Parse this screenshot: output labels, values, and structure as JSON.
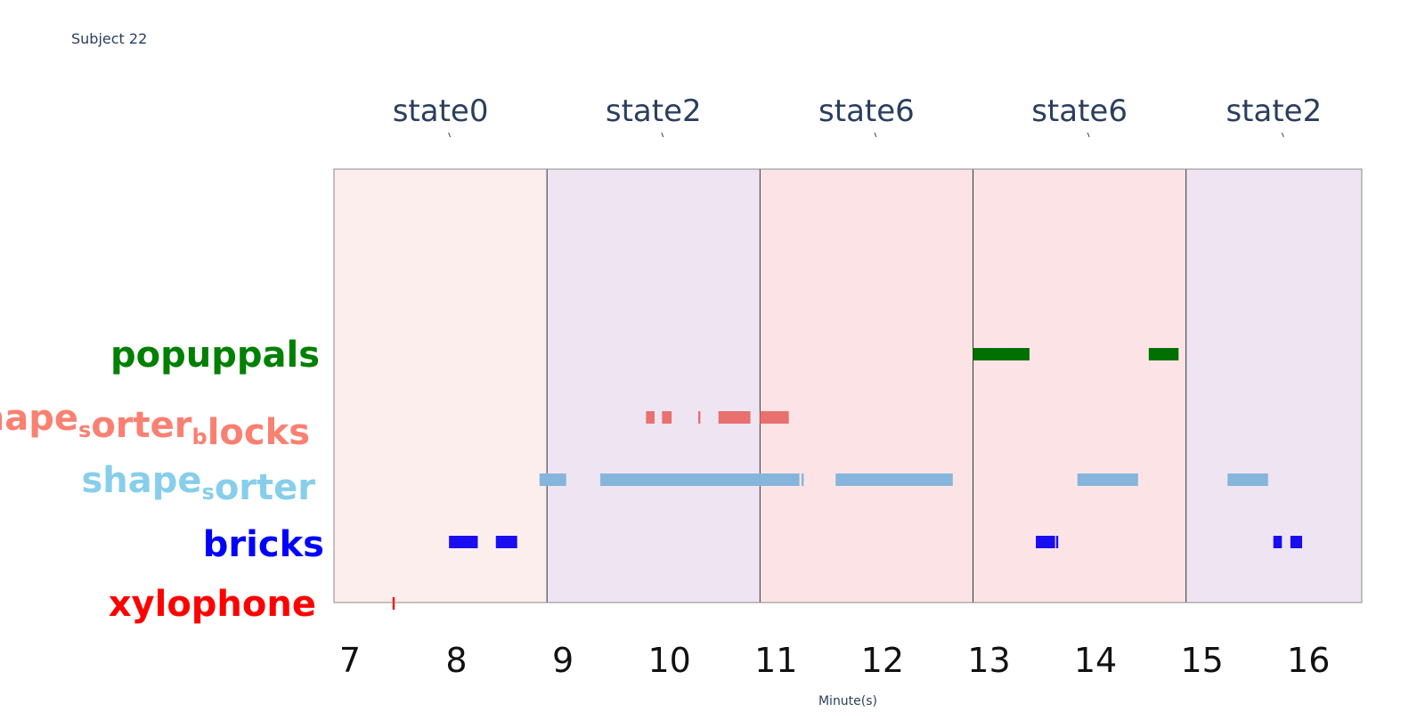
{
  "subtitle": "Subject 22",
  "chart_data": {
    "type": "timeline",
    "title": "",
    "xlabel": "Minute(s)",
    "ylabel": "",
    "xlim": [
      6.85,
      16.5
    ],
    "xticks": [
      7,
      8,
      9,
      10,
      11,
      12,
      13,
      14,
      15,
      16
    ],
    "categories": [
      "xylophone",
      "bricks",
      "shape_sorter",
      "shape_sorter_blocks",
      "popuppals"
    ],
    "category_labels": [
      {
        "key": "popuppals",
        "parts": [
          {
            "t": "popuppals"
          }
        ],
        "color": "#008000"
      },
      {
        "key": "shape_sorter_blocks",
        "parts": [
          {
            "t": "shape"
          },
          {
            "t": "s",
            "sub": true
          },
          {
            "t": "orter"
          },
          {
            "t": "b",
            "sub": true
          },
          {
            "t": "locks"
          }
        ],
        "color": "#fa8072"
      },
      {
        "key": "shape_sorter",
        "parts": [
          {
            "t": "shape"
          },
          {
            "t": "s",
            "sub": true
          },
          {
            "t": "orter"
          }
        ],
        "color": "#87ceeb"
      },
      {
        "key": "bricks",
        "parts": [
          {
            "t": "bricks"
          }
        ],
        "color": "#0000ff"
      },
      {
        "key": "xylophone",
        "parts": [
          {
            "t": "xylophone"
          }
        ],
        "color": "#ff0000"
      }
    ],
    "states": [
      {
        "label": "state0",
        "start": 6.85,
        "end": 8.85,
        "color": "#fdeeee"
      },
      {
        "label": "state2",
        "start": 8.85,
        "end": 10.85,
        "color": "#efe4f2"
      },
      {
        "label": "state6",
        "start": 10.85,
        "end": 12.85,
        "color": "#fce4e6"
      },
      {
        "label": "state6",
        "start": 12.85,
        "end": 14.85,
        "color": "#fce4e6"
      },
      {
        "label": "state2",
        "start": 14.85,
        "end": 16.5,
        "color": "#efe4f2"
      }
    ],
    "series": [
      {
        "name": "popuppals",
        "color": "#007000",
        "segments": [
          [
            12.85,
            13.38
          ],
          [
            14.5,
            14.78
          ]
        ]
      },
      {
        "name": "shape_sorter_blocks",
        "color": "#e8706e",
        "segments": [
          [
            9.78,
            9.86
          ],
          [
            9.93,
            10.02
          ],
          [
            10.27,
            10.29
          ],
          [
            10.46,
            10.76
          ],
          [
            10.85,
            11.12
          ]
        ]
      },
      {
        "name": "shape_sorter",
        "color": "#86b5db",
        "segments": [
          [
            8.78,
            9.03
          ],
          [
            9.35,
            11.22
          ],
          [
            11.24,
            11.26
          ],
          [
            11.56,
            12.66
          ],
          [
            13.83,
            14.4
          ],
          [
            15.24,
            15.62
          ]
        ]
      },
      {
        "name": "bricks",
        "color": "#1a0df0",
        "segments": [
          [
            7.93,
            8.2
          ],
          [
            8.37,
            8.57
          ],
          [
            13.44,
            13.62
          ],
          [
            13.63,
            13.65
          ],
          [
            15.67,
            15.75
          ],
          [
            15.83,
            15.94
          ]
        ]
      },
      {
        "name": "xylophone",
        "color": "#ff0000",
        "segments": [
          [
            7.4,
            7.42
          ]
        ]
      }
    ],
    "grid": false,
    "legend": "none"
  }
}
